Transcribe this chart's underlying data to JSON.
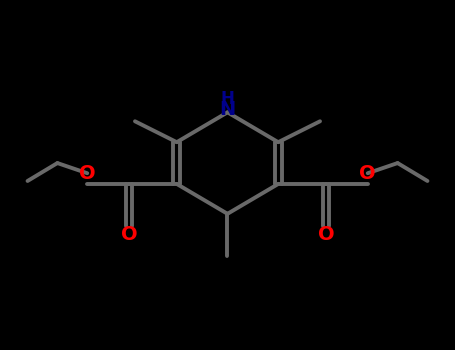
{
  "bg_color": "#000000",
  "bond_color": "#696969",
  "N_color": "#00008B",
  "O_color": "#FF0000",
  "line_width": 2.8,
  "fig_width": 4.55,
  "fig_height": 3.5,
  "dpi": 100,
  "NH_label": "H\nN",
  "O_label": "O",
  "carbonyl_O_label": "O"
}
